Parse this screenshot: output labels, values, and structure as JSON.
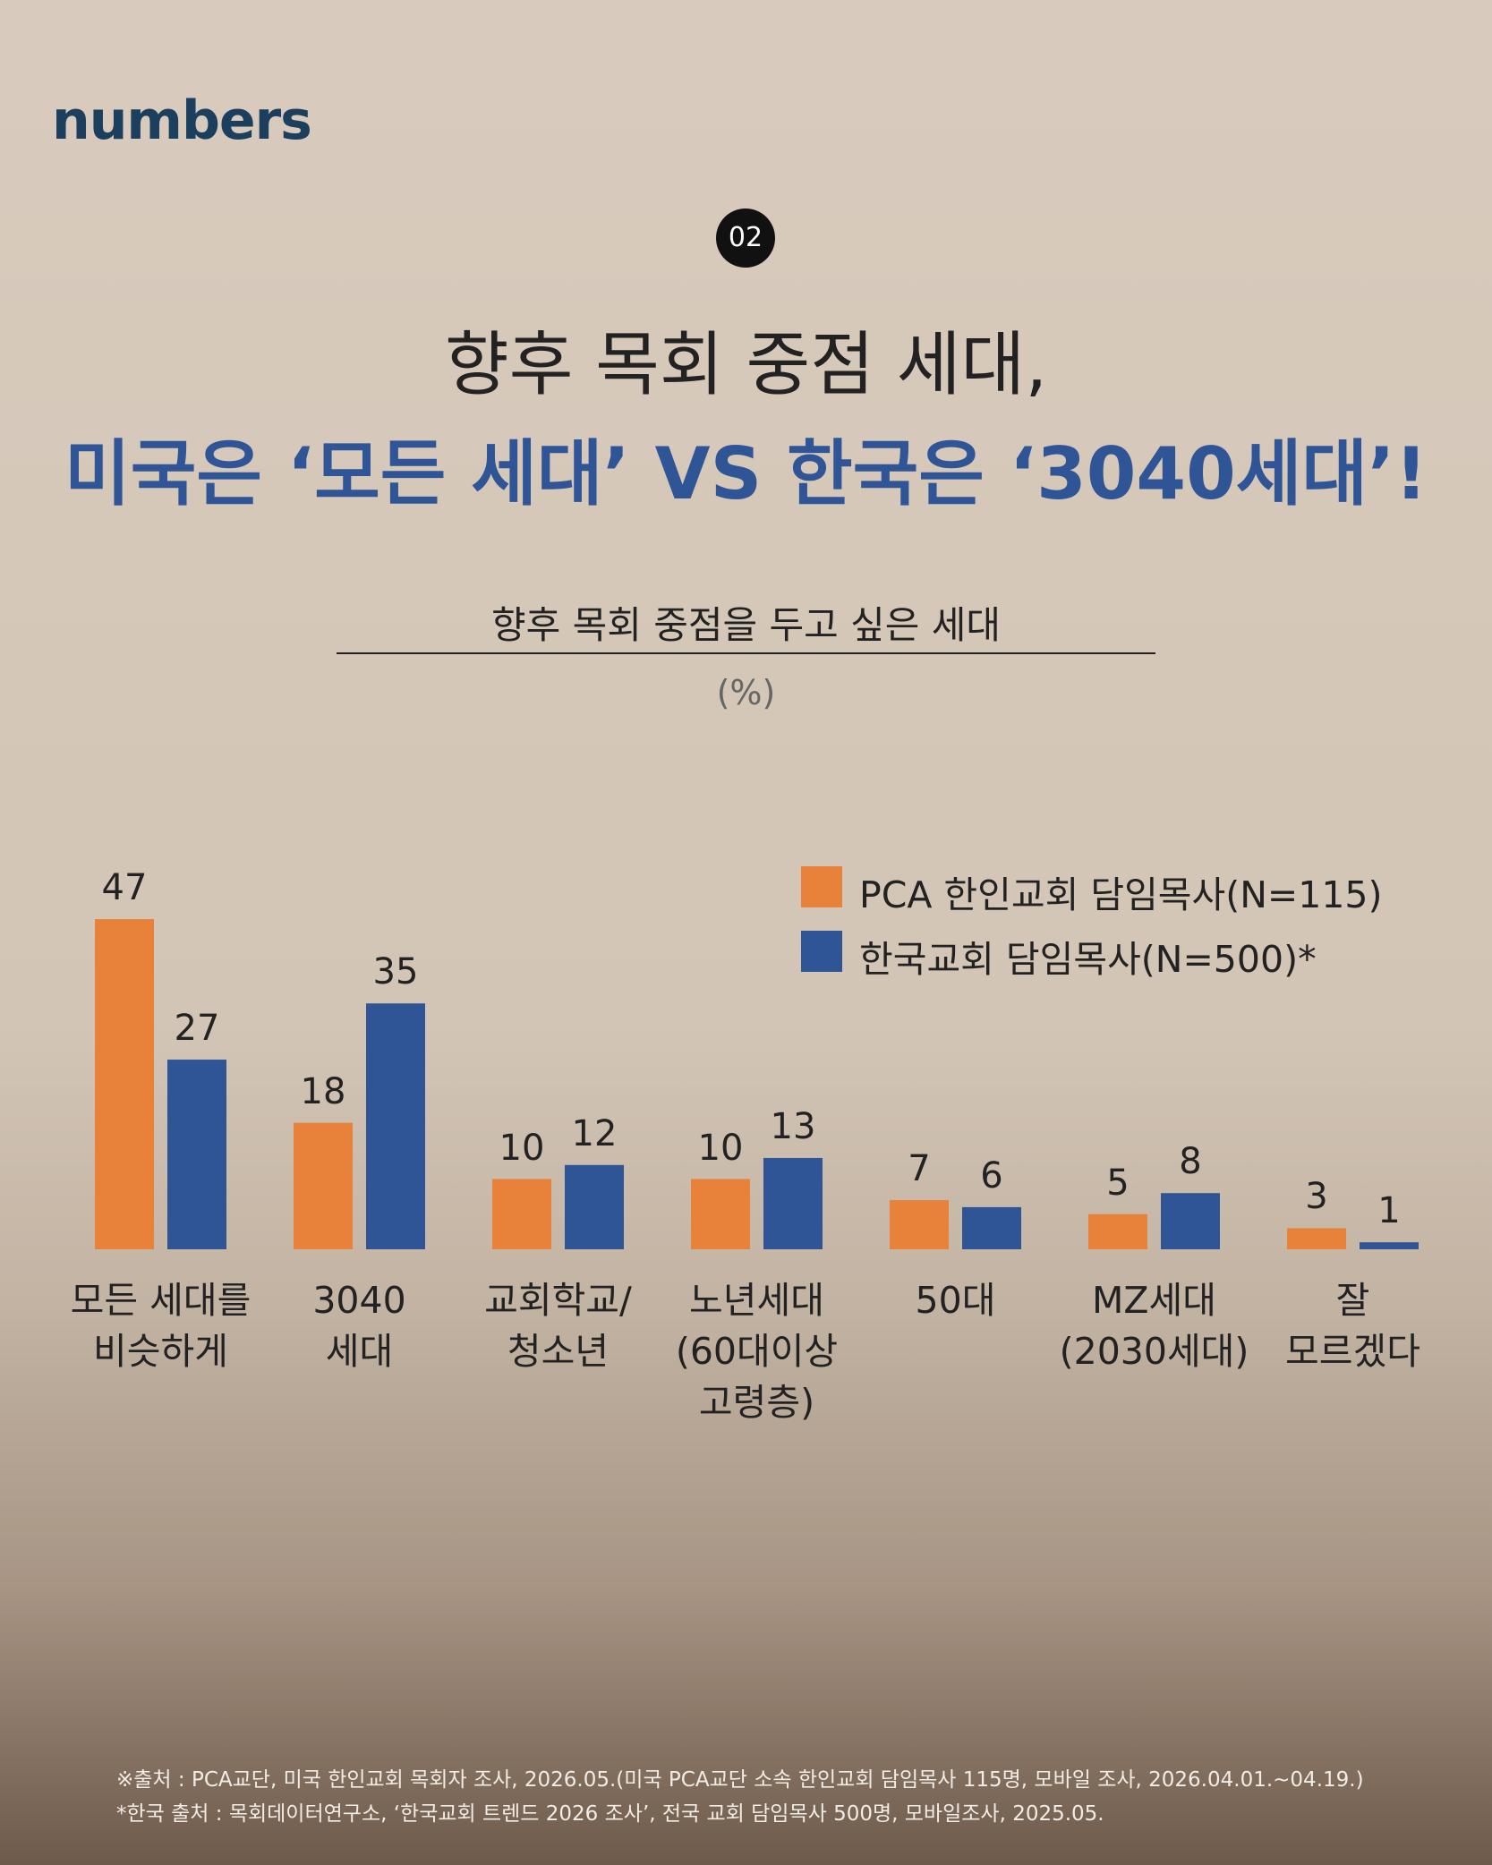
{
  "header": {
    "logo": "numbers",
    "badge": "02",
    "title": [
      "향후 목회 중점 세대,",
      "미국은 ‘모든 세대’ VS 한국은 ‘3040세대’!"
    ]
  },
  "chart_data": {
    "type": "bar",
    "title": "향후 목회 중점을 두고 싶은 세대",
    "unit_label": "(%)",
    "categories": [
      "모든 세대를\n비슷하게",
      "3040\n세대",
      "교회학교/\n청소년",
      "노년세대\n(60대이상\n고령층)",
      "50대",
      "MZ세대\n(2030세대)",
      "잘\n모르겠다"
    ],
    "series": [
      {
        "name": "PCA 한인교회 담임목사(N=115)",
        "color": "#e8823a",
        "values": [
          47,
          18,
          10,
          10,
          7,
          5,
          3
        ]
      },
      {
        "name": "한국교회 담임목사(N=500)*",
        "color": "#2f5597",
        "values": [
          27,
          35,
          12,
          13,
          6,
          8,
          1
        ]
      }
    ],
    "legend": "top-right"
  },
  "footnotes": [
    "※출처 : PCA교단, 미국 한인교회 목회자 조사, 2026.05.(미국 PCA교단 소속 한인교회 담임목사 115명, 모바일 조사, 2026.04.01.~04.19.)",
    "*한국 출처 : 목회데이터연구소, ‘한국교회 트렌드 2026 조사’, 전국 교회 담임목사 500명, 모바일조사, 2025.05."
  ]
}
